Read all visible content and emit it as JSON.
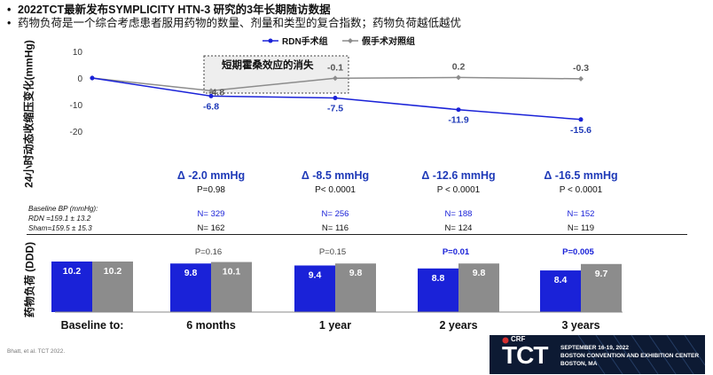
{
  "bullets": [
    "2022TCT最新发布SYMPLICITY HTN-3 研究的3年长期随访数据",
    "药物负荷是一个综合考虑患者服用药物的数量、剂量和类型的复合指数；药物负荷越低越优"
  ],
  "annotation_box_label": "短期霍桑效应的消失",
  "baseline_info": {
    "title": "Baseline BP (mmHg):",
    "rdn": "RDN =159.1 ± 13.2",
    "sham": "Sham=159.5 ± 15.3"
  },
  "deltas": [
    {
      "delta": "Δ -2.0 mmHg",
      "p": "P=0.98"
    },
    {
      "delta": "Δ -8.5 mmHg",
      "p": "P< 0.0001"
    },
    {
      "delta": "Δ -12.6 mmHg",
      "p": "P < 0.0001"
    },
    {
      "delta": "Δ -16.5 mmHg",
      "p": "P < 0.0001"
    }
  ],
  "n_rdn": [
    "N= 329",
    "N= 256",
    "N= 188",
    "N= 152"
  ],
  "n_sham": [
    "N= 162",
    "N= 116",
    "N= 124",
    "N= 119"
  ],
  "bar_pvalues": [
    {
      "text": "P=0.16",
      "emphasis": false
    },
    {
      "text": "P=0.15",
      "emphasis": false
    },
    {
      "text": "P=0.01",
      "emphasis": true
    },
    {
      "text": "P=0.005",
      "emphasis": true
    }
  ],
  "citation": "Bhatt, et al. TCT 2022.",
  "logo": {
    "crf": "CRF",
    "tct": "TCT",
    "dates": "SEPTEMBER 16-19, 2022",
    "venue": "BOSTON CONVENTION AND EXHIBITION CENTER",
    "city": "BOSTON, MA"
  },
  "colors": {
    "rdn": "#1a22d8",
    "sham": "#8c8c8c",
    "delta_text": "#1f3ab8"
  },
  "chart_data": [
    {
      "type": "line",
      "ylabel": "24小时动态收缩压变化(mmHg)",
      "ylim": [
        -20,
        10
      ],
      "yticks": [
        10,
        0,
        -10,
        -20
      ],
      "x": [
        "Baseline",
        "6 months",
        "1 year",
        "2 years",
        "3 years"
      ],
      "series": [
        {
          "name": "RDN手术组",
          "values": [
            0,
            -6.8,
            -7.5,
            -11.9,
            -15.6
          ],
          "labels": [
            "",
            "-6.8",
            "-7.5",
            "-11.9",
            "-15.6"
          ]
        },
        {
          "name": "假手术对照组",
          "values": [
            0,
            -4.8,
            -0.1,
            0.2,
            -0.3
          ],
          "labels": [
            "",
            "-4.8",
            "-0.1",
            "0.2",
            "-0.3"
          ]
        }
      ],
      "legend": "top"
    },
    {
      "type": "bar",
      "ylabel": "药物负荷 (DDD)",
      "categories": [
        "Baseline to:",
        "6 months",
        "1 year",
        "2 years",
        "3 years"
      ],
      "series": [
        {
          "name": "RDN",
          "values": [
            10.2,
            9.8,
            9.4,
            8.8,
            8.4
          ]
        },
        {
          "name": "Sham",
          "values": [
            10.2,
            10.1,
            9.8,
            9.8,
            9.7
          ]
        }
      ]
    }
  ]
}
